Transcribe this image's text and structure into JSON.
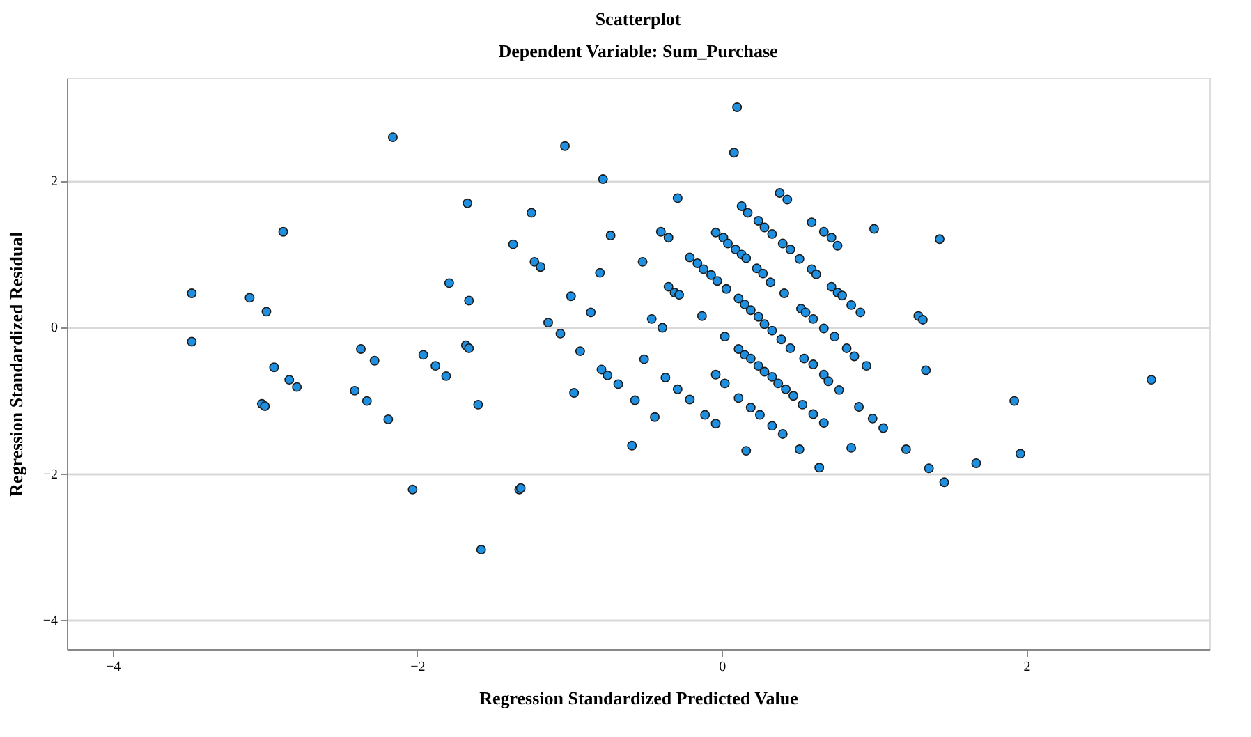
{
  "chart_data": {
    "type": "scatter",
    "title": "Scatterplot",
    "subtitle": "Dependent Variable: Sum_Purchase",
    "xlabel": "Regression Standardized Predicted Value",
    "ylabel": "Regression Standardized Residual",
    "xlim": [
      -4.3,
      3.2
    ],
    "ylim": [
      -4.4,
      3.4
    ],
    "xticks": [
      -4,
      -2,
      0,
      2
    ],
    "yticks": [
      -4,
      -2,
      0,
      2
    ],
    "grid": "y",
    "marker": "circle",
    "legend": false,
    "series": [
      {
        "color": "#1f8fe0",
        "x": [
          -2.16,
          -1.67,
          -2.88,
          -3.48,
          -3.1,
          -2.99,
          -1.79,
          -1.66,
          -3.48,
          -2.37,
          -2.28,
          -1.96,
          -1.88,
          -1.81,
          -1.68,
          -1.66,
          -2.94,
          -2.84,
          -2.79,
          -3.02,
          -3.0,
          -2.41,
          -2.33,
          -2.19,
          -2.03,
          -1.03,
          -0.78,
          -0.29,
          -1.25,
          -0.73,
          -0.4,
          -0.35,
          -1.37,
          -1.23,
          -1.19,
          -0.52,
          -0.8,
          -0.99,
          -0.86,
          -1.14,
          -1.06,
          -0.35,
          -0.31,
          -0.28,
          -0.46,
          -0.39,
          -0.13,
          -0.93,
          -0.79,
          -0.75,
          -0.68,
          -0.51,
          -0.37,
          -0.29,
          -0.21,
          -0.11,
          -0.57,
          -0.97,
          -0.44,
          -1.6,
          -0.59,
          -1.33,
          -1.32,
          -1.58,
          0.1,
          0.08,
          0.38,
          0.43,
          1.0,
          0.59,
          0.67,
          0.72,
          0.76,
          0.13,
          0.17,
          0.24,
          0.28,
          0.33,
          0.4,
          0.45,
          0.51,
          0.59,
          0.62,
          0.72,
          0.76,
          0.79,
          0.85,
          0.91,
          1.29,
          1.32,
          -0.04,
          0.01,
          0.04,
          0.09,
          0.13,
          0.16,
          0.23,
          0.27,
          0.32,
          0.41,
          0.52,
          0.55,
          0.6,
          0.67,
          0.74,
          0.82,
          0.87,
          0.95,
          -0.21,
          -0.16,
          -0.12,
          -0.07,
          -0.03,
          0.03,
          0.11,
          0.15,
          0.19,
          0.24,
          0.28,
          0.33,
          0.39,
          0.45,
          0.54,
          0.6,
          0.67,
          0.7,
          0.77,
          0.9,
          0.99,
          1.06,
          0.11,
          0.15,
          0.19,
          0.24,
          0.28,
          0.33,
          0.37,
          0.42,
          0.47,
          0.53,
          0.6,
          0.67,
          -0.04,
          0.02,
          0.11,
          0.19,
          0.25,
          0.33,
          0.4,
          0.51,
          0.02,
          -0.04,
          0.16,
          0.64,
          0.85,
          1.21,
          1.43,
          1.34,
          2.82,
          1.92,
          1.36,
          1.46,
          1.67,
          1.96
        ],
        "values": [
          2.59,
          1.69,
          1.3,
          0.46,
          0.4,
          0.21,
          0.6,
          0.36,
          -0.2,
          -0.3,
          -0.46,
          -0.38,
          -0.53,
          -0.67,
          -0.25,
          -0.29,
          -0.55,
          -0.72,
          -0.82,
          -1.05,
          -1.08,
          -0.87,
          -1.01,
          -1.26,
          -2.22,
          2.47,
          2.02,
          1.76,
          1.56,
          1.25,
          1.3,
          1.22,
          1.13,
          0.89,
          0.82,
          0.89,
          0.74,
          0.42,
          0.2,
          0.06,
          -0.09,
          0.55,
          0.47,
          0.44,
          0.11,
          -0.01,
          0.15,
          -0.33,
          -0.58,
          -0.66,
          -0.78,
          -0.44,
          -0.69,
          -0.85,
          -0.99,
          -1.2,
          -1.0,
          -0.9,
          -1.23,
          -1.06,
          -1.62,
          -2.22,
          -2.2,
          -3.04,
          3.0,
          2.38,
          1.83,
          1.74,
          1.34,
          1.43,
          1.3,
          1.22,
          1.11,
          1.65,
          1.56,
          1.45,
          1.36,
          1.27,
          1.14,
          1.06,
          0.93,
          0.79,
          0.72,
          0.55,
          0.47,
          0.43,
          0.3,
          0.2,
          0.15,
          0.1,
          1.29,
          1.22,
          1.14,
          1.06,
          0.99,
          0.94,
          0.8,
          0.73,
          0.61,
          0.46,
          0.25,
          0.2,
          0.11,
          -0.02,
          -0.13,
          -0.29,
          -0.4,
          -0.53,
          0.95,
          0.87,
          0.79,
          0.71,
          0.63,
          0.52,
          0.39,
          0.31,
          0.23,
          0.14,
          0.04,
          -0.05,
          -0.17,
          -0.29,
          -0.43,
          -0.51,
          -0.65,
          -0.74,
          -0.86,
          -1.09,
          -1.25,
          -1.38,
          -0.3,
          -0.38,
          -0.43,
          -0.53,
          -0.61,
          -0.68,
          -0.77,
          -0.85,
          -0.94,
          -1.06,
          -1.19,
          -1.31,
          -0.65,
          -0.77,
          -0.97,
          -1.1,
          -1.2,
          -1.35,
          -1.46,
          -1.67,
          -0.13,
          -1.32,
          -1.69,
          -1.92,
          -1.65,
          -1.67,
          1.2,
          -0.59,
          -0.72,
          -1.01,
          -1.93,
          -2.12,
          -1.86,
          -1.73
        ]
      }
    ]
  }
}
